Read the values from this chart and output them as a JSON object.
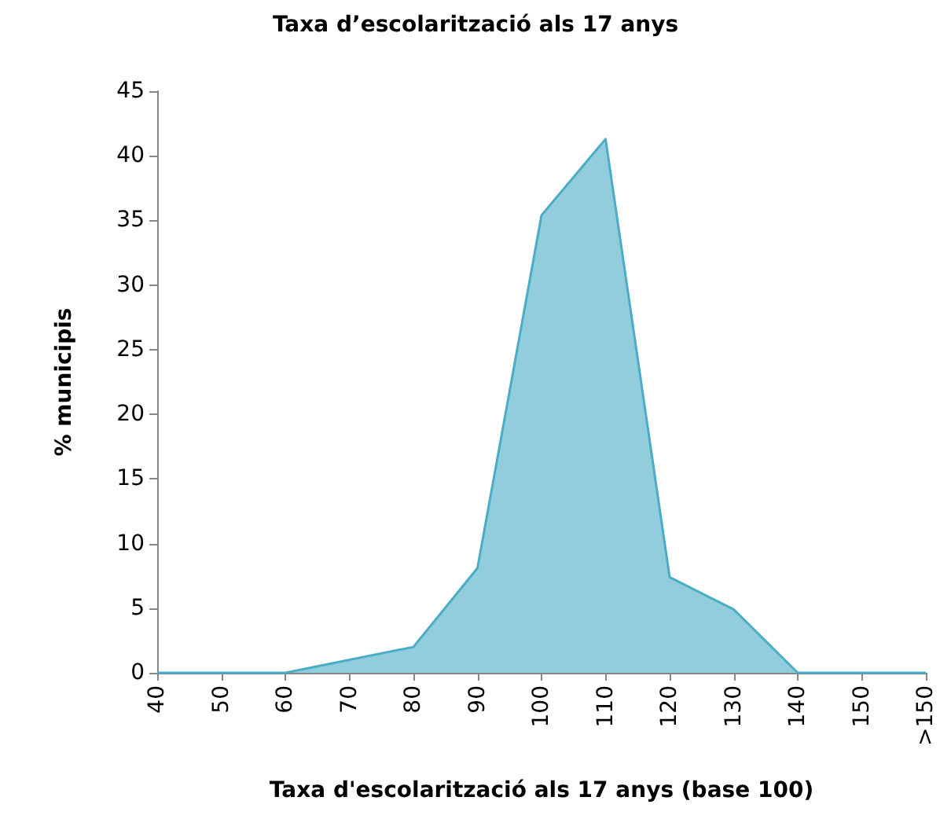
{
  "chart_data": {
    "type": "area",
    "title": "Taxa d’escolarització als 17 anys",
    "xlabel": "Taxa d'escolarització als 17 anys (base 100)",
    "ylabel": "% municipis",
    "categories": [
      "40",
      "50",
      "60",
      "70",
      "80",
      "90",
      "100",
      "110",
      "120",
      "130",
      "140",
      "150",
      ">150"
    ],
    "series": [
      {
        "color": "#4aacc6",
        "values": [
          0,
          0,
          0,
          1,
          2,
          8.1,
          35.4,
          41.3,
          7.4,
          4.9,
          0,
          0,
          0
        ]
      }
    ],
    "ylim": [
      0,
      45
    ],
    "yticks": [
      0,
      5,
      10,
      15,
      20,
      25,
      30,
      35,
      40,
      45
    ],
    "grid": false
  }
}
